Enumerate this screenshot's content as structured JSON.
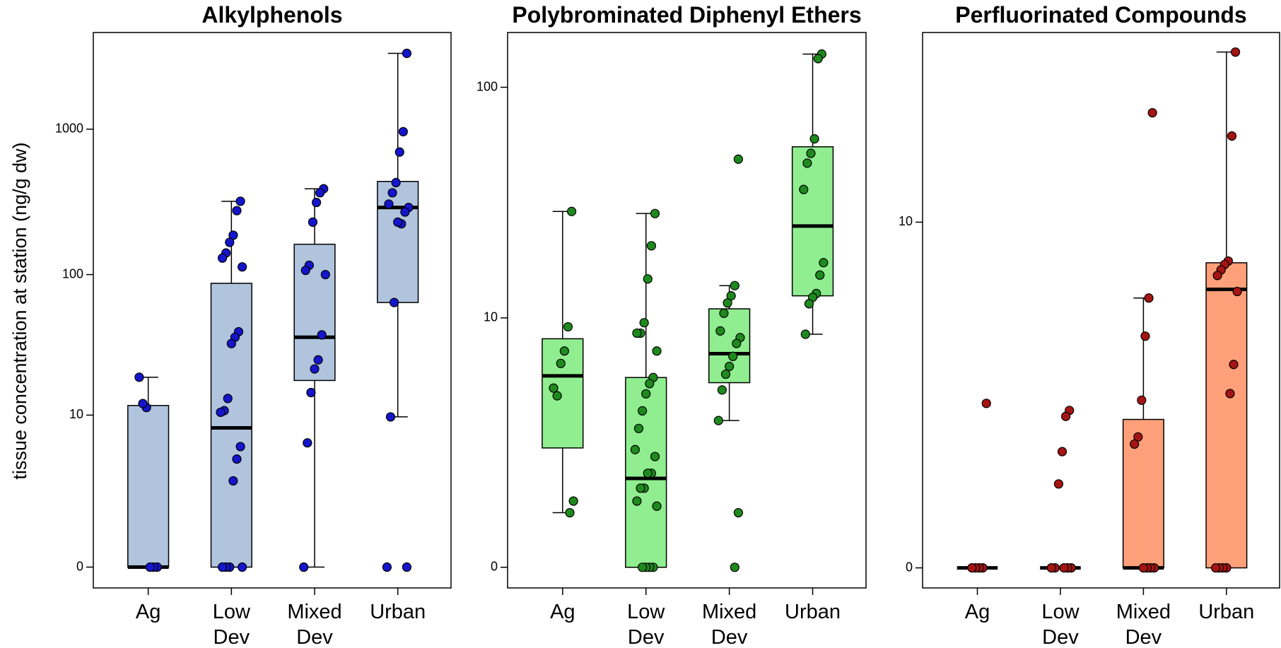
{
  "chart_data": [
    {
      "type": "box",
      "title": "Alkylphenols",
      "ylabel": "tissue concentration at station (ng/g dw)",
      "yscale": "log1p",
      "ylim": [
        -0.28,
        4600
      ],
      "yticks": [
        0,
        10,
        100,
        1000
      ],
      "categories": [
        "Ag",
        "Low Dev",
        "Mixed Dev",
        "Urban"
      ],
      "box_color": "#b0c4de",
      "point_color": "#1515cc",
      "boxes": [
        {
          "q1": 0,
          "median": 0,
          "q3": 11.8,
          "whisker_low": 0,
          "whisker_high": 19,
          "points": [
            0,
            0,
            0,
            11.4,
            12.2,
            19
          ]
        },
        {
          "q1": 0,
          "median": 8,
          "q3": 87,
          "whisker_low": 0,
          "whisker_high": 320,
          "points": [
            320,
            276,
            187,
            167,
            141,
            130,
            113,
            40,
            36.6,
            33,
            13.3,
            10.8,
            10.5,
            5.7,
            4.5,
            2.9,
            0,
            0,
            0,
            0
          ]
        },
        {
          "q1": 18,
          "median": 36.6,
          "q3": 162,
          "whisker_low": 0,
          "whisker_high": 390,
          "points": [
            390,
            366,
            314,
            230,
            116,
            107,
            100,
            38,
            25.3,
            21.8,
            14.7,
            6.1,
            0
          ]
        },
        {
          "q1": 64,
          "median": 290,
          "q3": 438,
          "whisker_low": 9.7,
          "whisker_high": 3310,
          "points": [
            3310,
            962,
            697,
            430,
            366,
            306,
            290,
            270,
            224,
            230,
            64,
            9.7,
            0,
            0
          ]
        }
      ]
    },
    {
      "type": "box",
      "title": "Polybrominated Diphenyl Ethers",
      "yscale": "log1p",
      "ylim": [
        -0.18,
        170
      ],
      "yticks": [
        0,
        10,
        100
      ],
      "categories": [
        "Ag",
        "Low Dev",
        "Mixed Dev",
        "Urban"
      ],
      "box_color": "#90ee90",
      "point_color": "#1e8a1e",
      "boxes": [
        {
          "q1": 2.15,
          "median": 5.3,
          "q3": 8,
          "whisker_low": 0.69,
          "whisker_high": 29.6,
          "points": [
            29.6,
            9.1,
            7,
            6.1,
            4.2,
            4.6,
            0.89,
            0.69
          ]
        },
        {
          "q1": 0,
          "median": 1.35,
          "q3": 5.2,
          "whisker_low": 0,
          "whisker_high": 29,
          "points": [
            29,
            21,
            15,
            9.5,
            8.5,
            8.5,
            7,
            5.2,
            4.85,
            4.3,
            3.5,
            2.8,
            2.1,
            1.9,
            1.47,
            1.47,
            1.14,
            1.14,
            0.89,
            0.8,
            0,
            0,
            0,
            0
          ]
        },
        {
          "q1": 4.9,
          "median": 6.8,
          "q3": 11,
          "whisker_low": 3.1,
          "whisker_high": 14,
          "points": [
            49.6,
            14,
            12.6,
            11.7,
            10.5,
            8.7,
            8.1,
            7.6,
            6.6,
            5.9,
            5.4,
            4.5,
            3.1,
            0.69,
            0
          ]
        },
        {
          "q1": 12.6,
          "median": 25.6,
          "q3": 56,
          "whisker_low": 8.4,
          "whisker_high": 138,
          "points": [
            138,
            132,
            60.5,
            52.5,
            47.7,
            36.8,
            17.7,
            15.6,
            12.9,
            12.4,
            11.6,
            8.4
          ]
        }
      ]
    },
    {
      "type": "box",
      "title": "Perfluorinated Compounds",
      "yscale": "log1p",
      "ylim": [
        -0.13,
        40
      ],
      "yticks": [
        0,
        10
      ],
      "categories": [
        "Ag",
        "Low Dev",
        "Mixed Dev",
        "Urban"
      ],
      "box_color": "#ffa07a",
      "point_color": "#a51414",
      "boxes": [
        {
          "q1": 0,
          "median": 0,
          "q3": 0,
          "whisker_low": 0,
          "whisker_high": 0,
          "points": [
            2.13,
            0,
            0,
            0,
            0
          ]
        },
        {
          "q1": 0,
          "median": 0,
          "q3": 0,
          "whisker_low": 0,
          "whisker_high": 0,
          "points": [
            1.98,
            1.86,
            1.24,
            0.79,
            0,
            0,
            0,
            0,
            0
          ]
        },
        {
          "q1": 0,
          "median": 0,
          "q3": 1.8,
          "whisker_low": 0,
          "whisker_high": 5.5,
          "points": [
            22.5,
            5.5,
            3.99,
            2.2,
            1.48,
            1.36,
            0,
            0,
            0,
            0
          ]
        },
        {
          "q1": 0,
          "median": 5.9,
          "q3": 7.3,
          "whisker_low": 0,
          "whisker_high": 34.8,
          "points": [
            34.8,
            19,
            7.4,
            7.2,
            6.9,
            6.6,
            5.8,
            3.1,
            2.35,
            0,
            0,
            0,
            0
          ]
        }
      ]
    }
  ]
}
